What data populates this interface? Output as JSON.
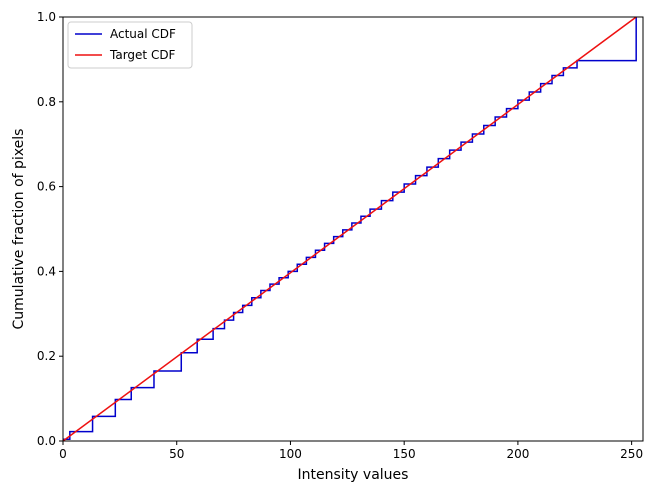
{
  "chart_data": {
    "type": "line",
    "title": "",
    "xlabel": "Intensity values",
    "ylabel": "Cumulative fraction of pixels",
    "xlim": [
      0,
      255
    ],
    "ylim": [
      0,
      1.0
    ],
    "x_ticks": [
      0,
      50,
      100,
      150,
      200,
      250
    ],
    "y_ticks": [
      0.0,
      0.2,
      0.4,
      0.6,
      0.8,
      1.0
    ],
    "x_tick_labels": [
      "0",
      "50",
      "100",
      "150",
      "200",
      "250"
    ],
    "y_tick_labels": [
      "0.0",
      "0.2",
      "0.4",
      "0.6",
      "0.8",
      "1.0"
    ],
    "grid": false,
    "legend": {
      "position": "top-left"
    },
    "colors": {
      "actual": "#0000cc",
      "target": "#ee1111"
    },
    "series": [
      {
        "name": "Actual CDF",
        "step": "post",
        "x": [
          0,
          3,
          13,
          23,
          30,
          40,
          52,
          59,
          66,
          71,
          75,
          79,
          83,
          87,
          91,
          95,
          99,
          103,
          107,
          111,
          115,
          119,
          123,
          127,
          131,
          135,
          140,
          145,
          150,
          155,
          160,
          165,
          170,
          175,
          180,
          185,
          190,
          195,
          200,
          205,
          210,
          215,
          220,
          226,
          252
        ],
        "y": [
          0.004,
          0.022,
          0.058,
          0.098,
          0.126,
          0.165,
          0.208,
          0.24,
          0.265,
          0.285,
          0.303,
          0.32,
          0.338,
          0.355,
          0.37,
          0.385,
          0.4,
          0.417,
          0.433,
          0.45,
          0.466,
          0.482,
          0.498,
          0.514,
          0.53,
          0.547,
          0.567,
          0.587,
          0.606,
          0.626,
          0.646,
          0.666,
          0.686,
          0.705,
          0.724,
          0.744,
          0.764,
          0.784,
          0.804,
          0.823,
          0.843,
          0.862,
          0.88,
          0.897,
          1.0
        ]
      },
      {
        "name": "Target CDF",
        "x": [
          0,
          252
        ],
        "y": [
          0.0,
          1.0
        ]
      }
    ]
  }
}
